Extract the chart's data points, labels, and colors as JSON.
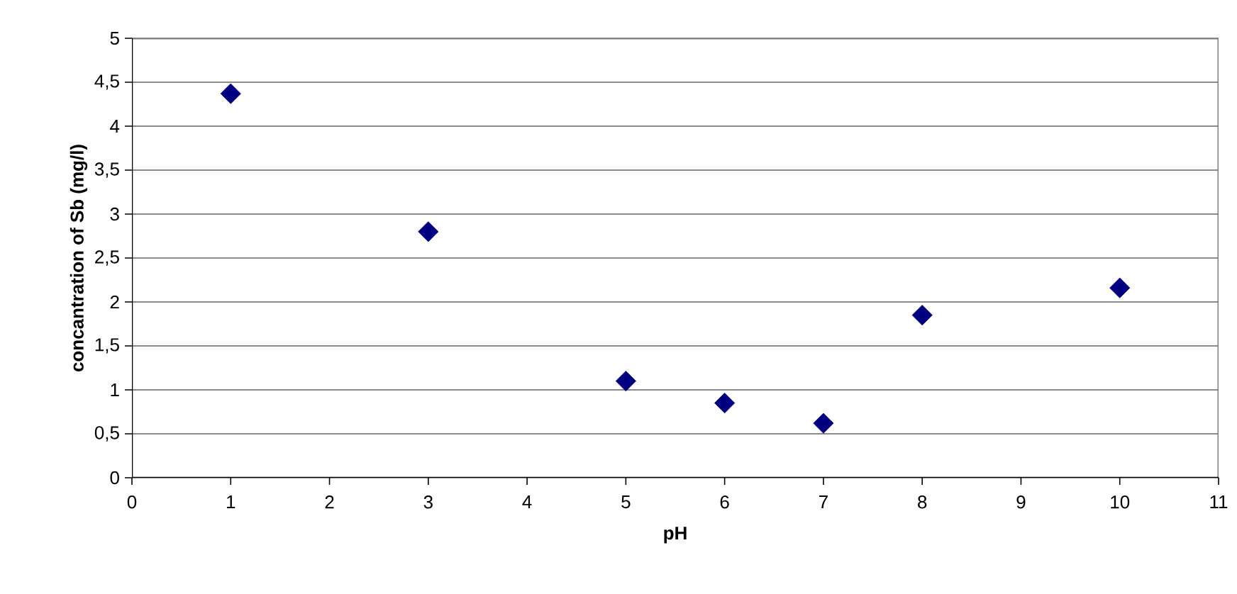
{
  "chart_data": {
    "type": "scatter",
    "xlabel": "pH",
    "ylabel": "concantration of Sb (mg/l)",
    "x": [
      1,
      3,
      5,
      6,
      7,
      8,
      10
    ],
    "series": [
      {
        "color": "#000080",
        "values": [
          4.37,
          2.8,
          1.1,
          0.85,
          0.62,
          1.85,
          2.16
        ]
      }
    ],
    "marker": "diamond",
    "grid": "y",
    "xlim": [
      0,
      11
    ],
    "xticks": [
      0,
      1,
      2,
      3,
      4,
      5,
      6,
      7,
      8,
      9,
      10,
      11
    ],
    "ylim": [
      0,
      5
    ],
    "yticks": [
      0,
      {
        "value": 0.5,
        "label": "0,5"
      },
      1,
      {
        "value": 1.5,
        "label": "1,5"
      },
      2,
      {
        "value": 2.5,
        "label": "2,5"
      },
      3,
      {
        "value": 3.5,
        "label": "3,5"
      },
      4,
      {
        "value": 4.5,
        "label": "4,5"
      },
      5
    ]
  }
}
